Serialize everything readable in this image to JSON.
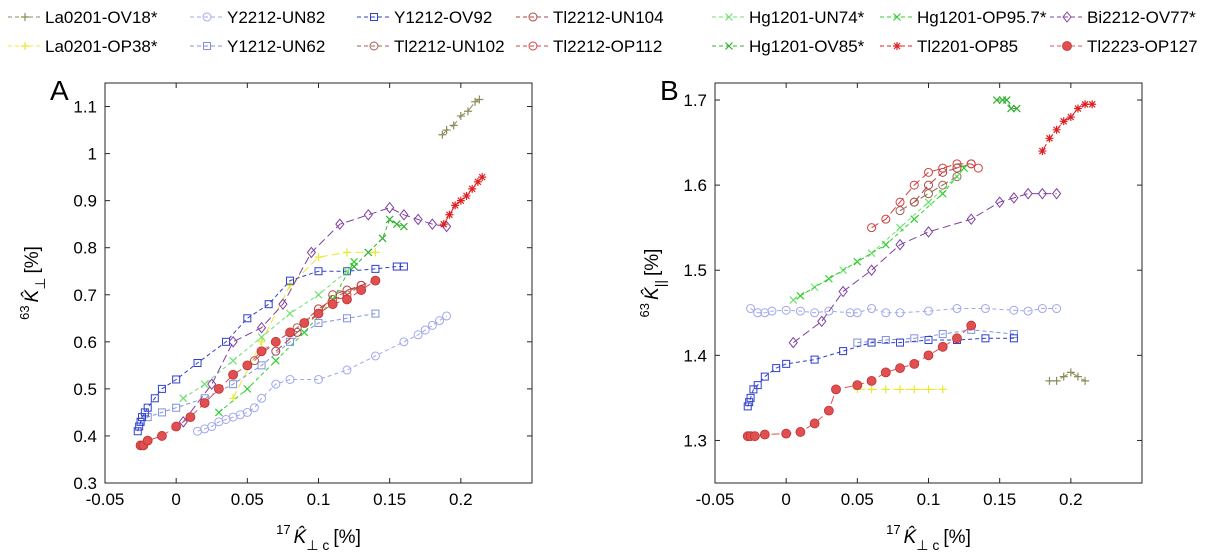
{
  "legend": [
    {
      "name": "La0201-OV18*",
      "color": "#8c8c5a",
      "marker": "plus",
      "dash": "8,4"
    },
    {
      "name": "Y2212-UN82",
      "color": "#a0a8ee",
      "marker": "circle",
      "dash": "4,3"
    },
    {
      "name": "Y1212-OV92",
      "color": "#2f3fd0",
      "marker": "square",
      "dash": "4,3"
    },
    {
      "name": "Tl2212-UN104",
      "color": "#b04040",
      "marker": "circle",
      "dash": "8,4"
    },
    {
      "name": "Hg1201-UN74*",
      "color": "#70e070",
      "marker": "x",
      "dash": "4,3"
    },
    {
      "name": "Hg1201-OP95.7*",
      "color": "#30d030",
      "marker": "x",
      "dash": "4,3"
    },
    {
      "name": "Bi2212-OV77*",
      "color": "#8040a0",
      "marker": "diamond",
      "dash": "8,4"
    },
    {
      "name": "La0201-OP38*",
      "color": "#e8e830",
      "marker": "plus",
      "dash": "8,4"
    },
    {
      "name": "Y1212-UN62",
      "color": "#8090e0",
      "marker": "square",
      "dash": "4,3"
    },
    {
      "name": "Tl2212-UN102",
      "color": "#a06050",
      "marker": "circle",
      "dash": "8,4"
    },
    {
      "name": "Tl2212-OP112",
      "color": "#d04040",
      "marker": "circle",
      "dash": "8,4"
    },
    {
      "name": "Hg1201-OV85*",
      "color": "#30b030",
      "marker": "x",
      "dash": "4,3"
    },
    {
      "name": "Tl2201-OP85",
      "color": "#e02020",
      "marker": "asterisk",
      "dash": "8,4"
    },
    {
      "name": "Tl2223-OP127",
      "color": "#e05050",
      "marker": "filledcircle",
      "dash": "8,4"
    }
  ],
  "chart_data": [
    {
      "panel": "A",
      "type": "scatter",
      "xlabel": {
        "sup": "17",
        "sym": "K̂",
        "sub": "⊥ c",
        "unit": "[%]"
      },
      "ylabel": {
        "sup": "63",
        "sym": "K̂",
        "sub": "⊥",
        "unit": "[%]"
      },
      "xlim": [
        -0.05,
        0.25
      ],
      "ylim": [
        0.3,
        1.15
      ],
      "xticks": [
        -0.05,
        0,
        0.05,
        0.1,
        0.15,
        0.2
      ],
      "xticklabels": [
        "-0.05",
        "0",
        "0.05",
        "0.1",
        "0.15",
        "0.2"
      ],
      "yticks": [
        0.3,
        0.4,
        0.5,
        0.6,
        0.7,
        0.8,
        0.9,
        1.0,
        1.1
      ],
      "yticklabels": [
        "0.3",
        "0.4",
        "0.5",
        "0.6",
        "0.7",
        "0.8",
        "0.9",
        "1",
        "1.1"
      ],
      "series": [
        {
          "name": "La0201-OV18*",
          "x": [
            0.187,
            0.19,
            0.195,
            0.2,
            0.205,
            0.21,
            0.213
          ],
          "y": [
            1.04,
            1.05,
            1.06,
            1.08,
            1.09,
            1.11,
            1.115
          ]
        },
        {
          "name": "La0201-OP38*",
          "x": [
            0.04,
            0.06,
            0.08,
            0.1,
            0.12,
            0.14
          ],
          "y": [
            0.48,
            0.6,
            0.72,
            0.78,
            0.79,
            0.79
          ]
        },
        {
          "name": "Y2212-UN82",
          "x": [
            0.015,
            0.02,
            0.025,
            0.03,
            0.035,
            0.04,
            0.045,
            0.05,
            0.055,
            0.06,
            0.07,
            0.08,
            0.1,
            0.12,
            0.14,
            0.16,
            0.17,
            0.175,
            0.18,
            0.185,
            0.19
          ],
          "y": [
            0.41,
            0.415,
            0.42,
            0.43,
            0.435,
            0.44,
            0.445,
            0.45,
            0.46,
            0.48,
            0.51,
            0.52,
            0.52,
            0.54,
            0.57,
            0.6,
            0.615,
            0.625,
            0.635,
            0.645,
            0.655
          ]
        },
        {
          "name": "Y1212-UN62",
          "x": [
            -0.025,
            -0.02,
            -0.01,
            0,
            0.02,
            0.04,
            0.06,
            0.08,
            0.1,
            0.12,
            0.14
          ],
          "y": [
            0.43,
            0.44,
            0.45,
            0.46,
            0.48,
            0.51,
            0.55,
            0.6,
            0.64,
            0.65,
            0.66
          ]
        },
        {
          "name": "Y1212-OV92",
          "x": [
            -0.027,
            -0.026,
            -0.025,
            -0.024,
            -0.022,
            -0.02,
            -0.015,
            -0.01,
            0.0,
            0.015,
            0.035,
            0.05,
            0.065,
            0.08,
            0.1,
            0.12,
            0.14,
            0.155,
            0.16
          ],
          "y": [
            0.41,
            0.42,
            0.43,
            0.44,
            0.45,
            0.46,
            0.48,
            0.5,
            0.52,
            0.555,
            0.6,
            0.65,
            0.68,
            0.73,
            0.75,
            0.75,
            0.755,
            0.76,
            0.76
          ]
        },
        {
          "name": "Tl2212-UN104",
          "x": [
            0.07,
            0.085,
            0.1,
            0.11,
            0.12,
            0.13,
            0.14
          ],
          "y": [
            0.58,
            0.62,
            0.66,
            0.7,
            0.71,
            0.72,
            0.73
          ]
        },
        {
          "name": "Tl2212-UN102",
          "x": [
            0.055,
            0.07,
            0.085,
            0.1,
            0.115,
            0.13
          ],
          "y": [
            0.56,
            0.6,
            0.63,
            0.67,
            0.7,
            0.72
          ]
        },
        {
          "name": "Tl2212-OP112",
          "x": [
            0.09,
            0.1,
            0.11,
            0.12,
            0.13
          ],
          "y": [
            0.64,
            0.67,
            0.69,
            0.7,
            0.72
          ]
        },
        {
          "name": "Hg1201-UN74*",
          "x": [
            0.005,
            0.02,
            0.04,
            0.06,
            0.08,
            0.1,
            0.12
          ],
          "y": [
            0.48,
            0.51,
            0.56,
            0.61,
            0.66,
            0.7,
            0.75
          ]
        },
        {
          "name": "Hg1201-OP95.7*",
          "x": [
            0.03,
            0.05,
            0.07,
            0.09,
            0.11,
            0.125
          ],
          "y": [
            0.45,
            0.5,
            0.56,
            0.62,
            0.69,
            0.77
          ]
        },
        {
          "name": "Hg1201-OV85*",
          "x": [
            0.125,
            0.135,
            0.145,
            0.15,
            0.155,
            0.16
          ],
          "y": [
            0.76,
            0.79,
            0.82,
            0.86,
            0.85,
            0.845
          ]
        },
        {
          "name": "Bi2212-OV77*",
          "x": [
            0.005,
            0.025,
            0.04,
            0.06,
            0.075,
            0.095,
            0.115,
            0.135,
            0.15,
            0.16,
            0.17,
            0.18,
            0.19
          ],
          "y": [
            0.43,
            0.51,
            0.6,
            0.63,
            0.68,
            0.79,
            0.85,
            0.87,
            0.885,
            0.87,
            0.86,
            0.85,
            0.845
          ]
        },
        {
          "name": "Tl2201-OP85",
          "x": [
            0.188,
            0.192,
            0.196,
            0.2,
            0.204,
            0.208,
            0.212,
            0.215
          ],
          "y": [
            0.85,
            0.87,
            0.89,
            0.9,
            0.91,
            0.925,
            0.94,
            0.95
          ]
        },
        {
          "name": "Tl2223-OP127",
          "x": [
            -0.025,
            -0.023,
            -0.02,
            -0.01,
            0.0,
            0.01,
            0.02,
            0.03,
            0.04,
            0.05,
            0.06,
            0.07,
            0.08,
            0.09,
            0.1,
            0.11,
            0.12,
            0.13,
            0.14
          ],
          "y": [
            0.38,
            0.38,
            0.39,
            0.4,
            0.42,
            0.44,
            0.47,
            0.5,
            0.53,
            0.55,
            0.58,
            0.6,
            0.62,
            0.64,
            0.66,
            0.68,
            0.69,
            0.71,
            0.73
          ]
        }
      ]
    },
    {
      "panel": "B",
      "type": "scatter",
      "xlabel": {
        "sup": "17",
        "sym": "K̂",
        "sub": "⊥ c",
        "unit": "[%]"
      },
      "ylabel": {
        "sup": "63",
        "sym": "K̂",
        "sub": "||",
        "unit": "[%]"
      },
      "xlim": [
        -0.05,
        0.25
      ],
      "ylim": [
        1.25,
        1.72
      ],
      "xticks": [
        -0.05,
        0,
        0.05,
        0.1,
        0.15,
        0.2
      ],
      "xticklabels": [
        "-0.05",
        "0",
        "0.05",
        "0.1",
        "0.15",
        "0.2"
      ],
      "yticks": [
        1.3,
        1.4,
        1.5,
        1.6,
        1.7
      ],
      "yticklabels": [
        "1.3",
        "1.4",
        "1.5",
        "1.6",
        "1.7"
      ],
      "series": [
        {
          "name": "La0201-OV18*",
          "x": [
            0.185,
            0.19,
            0.195,
            0.2,
            0.205,
            0.21
          ],
          "y": [
            1.37,
            1.37,
            1.375,
            1.38,
            1.375,
            1.37
          ]
        },
        {
          "name": "La0201-OP38*",
          "x": [
            0.05,
            0.06,
            0.07,
            0.08,
            0.09,
            0.1,
            0.11
          ],
          "y": [
            1.36,
            1.36,
            1.36,
            1.36,
            1.36,
            1.36,
            1.36
          ]
        },
        {
          "name": "Y2212-UN82",
          "x": [
            -0.025,
            -0.02,
            -0.015,
            -0.01,
            0.0,
            0.01,
            0.02,
            0.03,
            0.045,
            0.05,
            0.06,
            0.07,
            0.08,
            0.1,
            0.12,
            0.14,
            0.16,
            0.17,
            0.18,
            0.19
          ],
          "y": [
            1.455,
            1.45,
            1.45,
            1.452,
            1.453,
            1.452,
            1.45,
            1.452,
            1.45,
            1.45,
            1.455,
            1.45,
            1.45,
            1.452,
            1.455,
            1.455,
            1.453,
            1.452,
            1.455,
            1.455
          ]
        },
        {
          "name": "Y1212-UN62",
          "x": [
            0.05,
            0.07,
            0.09,
            0.11,
            0.13,
            0.16
          ],
          "y": [
            1.415,
            1.418,
            1.42,
            1.425,
            1.43,
            1.425
          ]
        },
        {
          "name": "Y1212-OV92",
          "x": [
            -0.027,
            -0.026,
            -0.025,
            -0.023,
            -0.02,
            -0.015,
            -0.007,
            0.0,
            0.02,
            0.04,
            0.06,
            0.08,
            0.1,
            0.12,
            0.14,
            0.16
          ],
          "y": [
            1.34,
            1.345,
            1.35,
            1.36,
            1.365,
            1.375,
            1.385,
            1.39,
            1.395,
            1.405,
            1.415,
            1.415,
            1.418,
            1.418,
            1.42,
            1.42
          ]
        },
        {
          "name": "Tl2212-UN104",
          "x": [
            0.09,
            0.1,
            0.11,
            0.12,
            0.13
          ],
          "y": [
            1.58,
            1.6,
            1.615,
            1.62,
            1.625
          ]
        },
        {
          "name": "Tl2212-UN102",
          "x": [
            0.08,
            0.09,
            0.1,
            0.11,
            0.12
          ],
          "y": [
            1.57,
            1.58,
            1.59,
            1.6,
            1.61
          ]
        },
        {
          "name": "Tl2212-OP112",
          "x": [
            0.06,
            0.07,
            0.08,
            0.09,
            0.1,
            0.11,
            0.12,
            0.13,
            0.135
          ],
          "y": [
            1.55,
            1.56,
            1.58,
            1.6,
            1.615,
            1.62,
            1.625,
            1.625,
            1.62
          ]
        },
        {
          "name": "Hg1201-UN74*",
          "x": [
            0.005,
            0.02,
            0.04,
            0.06,
            0.08,
            0.1,
            0.12
          ],
          "y": [
            1.465,
            1.48,
            1.5,
            1.52,
            1.55,
            1.58,
            1.61
          ]
        },
        {
          "name": "Hg1201-OP95.7*",
          "x": [
            0.01,
            0.03,
            0.05,
            0.07,
            0.09,
            0.11,
            0.125
          ],
          "y": [
            1.47,
            1.49,
            1.51,
            1.53,
            1.56,
            1.59,
            1.62
          ]
        },
        {
          "name": "Hg1201-OV85*",
          "x": [
            0.148,
            0.152,
            0.155,
            0.158,
            0.162
          ],
          "y": [
            1.7,
            1.7,
            1.7,
            1.69,
            1.69
          ]
        },
        {
          "name": "Bi2212-OV77*",
          "x": [
            0.005,
            0.025,
            0.04,
            0.06,
            0.08,
            0.1,
            0.13,
            0.15,
            0.16,
            0.17,
            0.18,
            0.19
          ],
          "y": [
            1.415,
            1.44,
            1.475,
            1.5,
            1.53,
            1.545,
            1.56,
            1.58,
            1.585,
            1.59,
            1.59,
            1.59
          ]
        },
        {
          "name": "Tl2201-OP85",
          "x": [
            0.18,
            0.185,
            0.19,
            0.195,
            0.2,
            0.205,
            0.21,
            0.215
          ],
          "y": [
            1.64,
            1.655,
            1.665,
            1.675,
            1.68,
            1.69,
            1.695,
            1.695
          ]
        },
        {
          "name": "Tl2223-OP127",
          "x": [
            -0.027,
            -0.025,
            -0.022,
            -0.015,
            0.0,
            0.01,
            0.02,
            0.03,
            0.035,
            0.05,
            0.06,
            0.07,
            0.08,
            0.09,
            0.1,
            0.11,
            0.12,
            0.13
          ],
          "y": [
            1.305,
            1.305,
            1.305,
            1.307,
            1.308,
            1.31,
            1.32,
            1.335,
            1.36,
            1.365,
            1.37,
            1.38,
            1.385,
            1.39,
            1.4,
            1.41,
            1.42,
            1.435
          ]
        }
      ]
    }
  ]
}
